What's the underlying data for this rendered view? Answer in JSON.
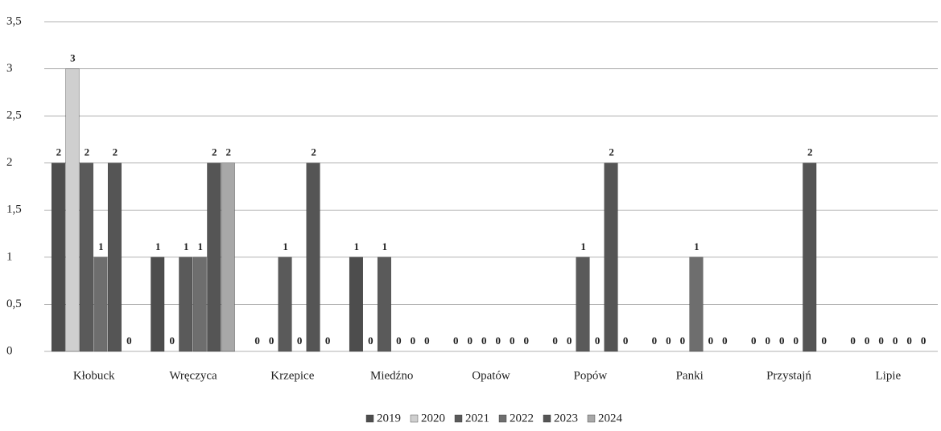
{
  "chart_data": {
    "type": "bar",
    "categories": [
      "Kłobuck",
      "Wręczyca",
      "Krzepice",
      "Miedźno",
      "Opatów",
      "Popów",
      "Panki",
      "Przystajń",
      "Lipie"
    ],
    "series": [
      {
        "name": "2019",
        "color": "#4d4d4d",
        "values": [
          2,
          1,
          0,
          1,
          0,
          0,
          0,
          0,
          0
        ]
      },
      {
        "name": "2020",
        "color": "#cfcfcf",
        "values": [
          3,
          0,
          0,
          0,
          0,
          0,
          0,
          0,
          0
        ]
      },
      {
        "name": "2021",
        "color": "#5a5a5a",
        "values": [
          2,
          1,
          1,
          1,
          0,
          1,
          0,
          0,
          0
        ]
      },
      {
        "name": "2022",
        "color": "#6e6e6e",
        "values": [
          1,
          1,
          0,
          0,
          0,
          0,
          1,
          0,
          0
        ]
      },
      {
        "name": "2023",
        "color": "#555555",
        "values": [
          2,
          2,
          2,
          0,
          0,
          2,
          0,
          2,
          0
        ]
      },
      {
        "name": "2024",
        "color": "#a8a8a8",
        "values": [
          0,
          2,
          0,
          0,
          0,
          0,
          0,
          0,
          0
        ]
      }
    ],
    "ylim": [
      0,
      3.5
    ],
    "yticks": [
      0,
      {
        "value": 0.5,
        "label": "0,5"
      },
      1,
      {
        "value": 1.5,
        "label": "1,5"
      },
      2,
      {
        "value": 2.5,
        "label": "2,5"
      },
      3,
      {
        "value": 3.5,
        "label": "3,5"
      }
    ],
    "grid": true,
    "legend": "bottom"
  }
}
